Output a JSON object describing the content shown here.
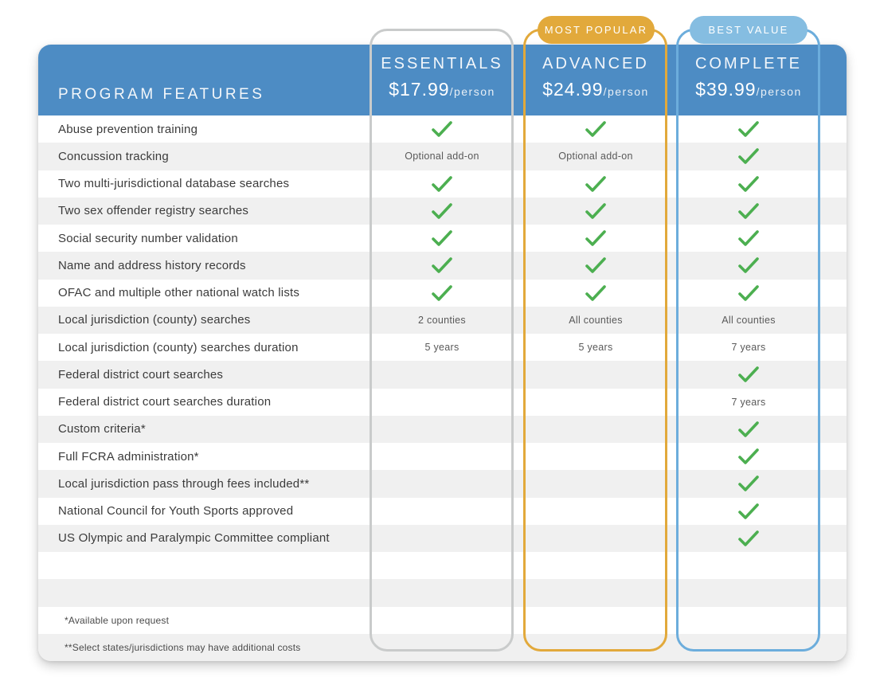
{
  "table": {
    "features_header": "PROGRAM FEATURES",
    "plans": [
      {
        "name": "ESSENTIALS",
        "price": "$17.99",
        "per": "/person",
        "badge": "",
        "accent_color": "#c9cbcb"
      },
      {
        "name": "ADVANCED",
        "price": "$24.99",
        "per": "/person",
        "badge": "MOST POPULAR",
        "accent_color": "#e2a93b"
      },
      {
        "name": "COMPLETE",
        "price": "$39.99",
        "per": "/person",
        "badge": "BEST VALUE",
        "accent_color": "#6caddc"
      }
    ],
    "check_symbol": "check",
    "features": [
      {
        "label": "Abuse prevention training",
        "values": [
          "check",
          "check",
          "check"
        ]
      },
      {
        "label": "Concussion tracking",
        "values": [
          "Optional add-on",
          "Optional add-on",
          "check"
        ]
      },
      {
        "label": "Two multi-jurisdictional database searches",
        "values": [
          "check",
          "check",
          "check"
        ]
      },
      {
        "label": "Two sex offender registry searches",
        "values": [
          "check",
          "check",
          "check"
        ]
      },
      {
        "label": "Social security number validation",
        "values": [
          "check",
          "check",
          "check"
        ]
      },
      {
        "label": "Name and address history records",
        "values": [
          "check",
          "check",
          "check"
        ]
      },
      {
        "label": "OFAC and multiple other national watch lists",
        "values": [
          "check",
          "check",
          "check"
        ]
      },
      {
        "label": "Local jurisdiction (county) searches",
        "values": [
          "2 counties",
          "All counties",
          "All counties"
        ]
      },
      {
        "label": "Local jurisdiction (county) searches duration",
        "values": [
          "5 years",
          "5 years",
          "7 years"
        ]
      },
      {
        "label": "Federal district court searches",
        "values": [
          "",
          "",
          "check"
        ]
      },
      {
        "label": "Federal district court searches duration",
        "values": [
          "",
          "",
          "7 years"
        ]
      },
      {
        "label": "Custom criteria*",
        "values": [
          "",
          "",
          "check"
        ]
      },
      {
        "label": "Full FCRA administration*",
        "values": [
          "",
          "",
          "check"
        ]
      },
      {
        "label": "Local jurisdiction pass through fees included**",
        "values": [
          "",
          "",
          "check"
        ]
      },
      {
        "label": "National Council for Youth Sports approved",
        "values": [
          "",
          "",
          "check"
        ]
      },
      {
        "label": "US Olympic and Paralympic Committee compliant",
        "values": [
          "",
          "",
          "check"
        ]
      }
    ],
    "footnotes": [
      "*Available upon request",
      "**Select states/jurisdictions may have additional costs"
    ]
  },
  "colors": {
    "header_blue": "#4d8cc4",
    "stripe_gray": "#f0f0f0",
    "check_green": "#4caf50",
    "outline_gray": "#c9cbcb",
    "badge_gold": "#e2a93b",
    "badge_light_blue": "#85bde1",
    "outline_blue": "#6caddc"
  }
}
